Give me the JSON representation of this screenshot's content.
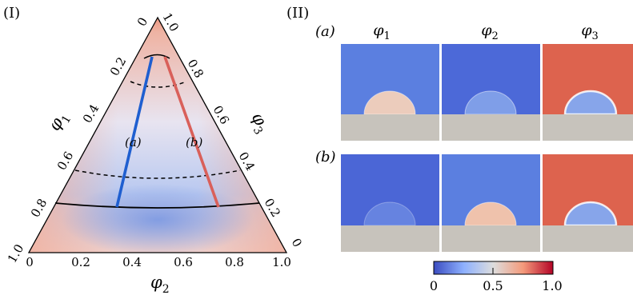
{
  "panel_i": {
    "label": "(I)",
    "axis_phi1": {
      "name": "φ",
      "sub": "1",
      "ticks": [
        "0",
        "0.2",
        "0.4",
        "0.6",
        "0.8",
        "1.0"
      ]
    },
    "axis_phi2": {
      "name": "φ",
      "sub": "2",
      "ticks": [
        "0",
        "0.2",
        "0.4",
        "0.6",
        "0.8",
        "1.0"
      ]
    },
    "axis_phi3": {
      "name": "φ",
      "sub": "3",
      "ticks": [
        "0",
        "0.2",
        "0.4",
        "0.6",
        "0.8",
        "1.0"
      ]
    },
    "path_a_label": "(a)",
    "path_b_label": "(b)",
    "path_a_color": "#1f5fd0",
    "path_b_color": "#d9605a"
  },
  "panel_ii": {
    "label": "(II)",
    "columns": [
      {
        "name": "φ",
        "sub": "1"
      },
      {
        "name": "φ",
        "sub": "2"
      },
      {
        "name": "φ",
        "sub": "3"
      }
    ],
    "rows": [
      {
        "label": "(a)",
        "backgrounds": [
          "#5b7fe0",
          "#4c69d8",
          "#dd634e"
        ],
        "drops": [
          "#ecccbc",
          "#7f9ee8",
          "#87a5ea"
        ]
      },
      {
        "label": "(b)",
        "backgrounds": [
          "#4b66d6",
          "#5b7fe0",
          "#dd634e"
        ],
        "drops": [
          "#6683e0",
          "#efc2ac",
          "#87a5ea"
        ]
      }
    ],
    "substrate_color": "#c7c3bc"
  },
  "colorbar": {
    "ticks": [
      "0",
      "0.5",
      "1.0"
    ],
    "stops": [
      "#3b4cc0",
      "#8db0fe",
      "#dddddd",
      "#f49a7b",
      "#b40426"
    ]
  }
}
